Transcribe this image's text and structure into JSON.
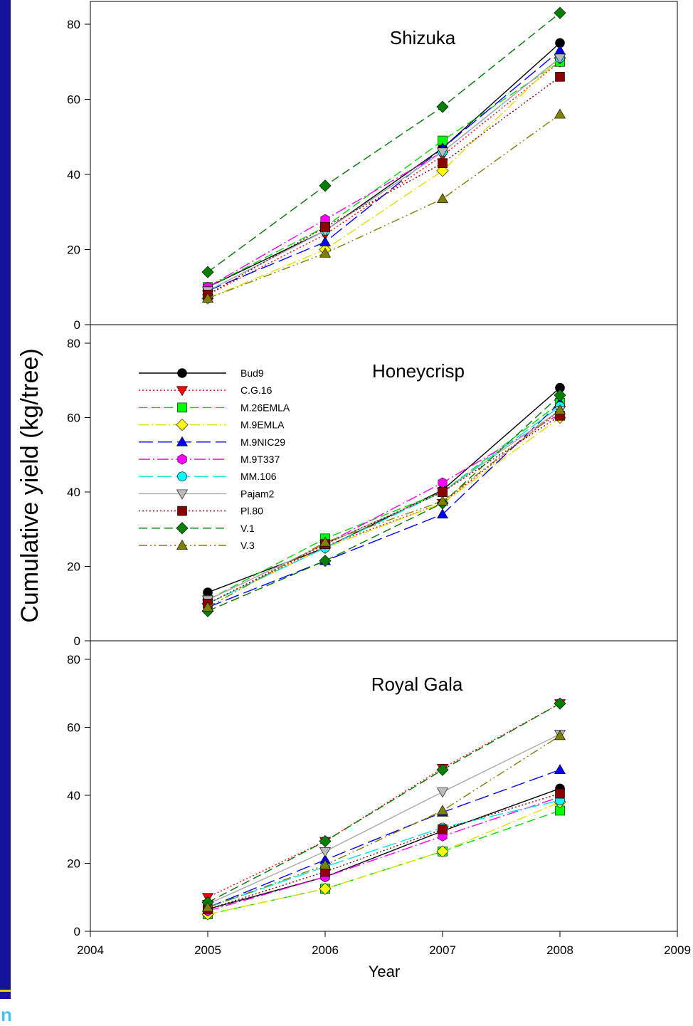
{
  "strip_glyph": "n",
  "xlabel": "Year",
  "ylabel": "Cumulative yield (kg/tree)",
  "x_ticks": [
    "2004",
    "2005",
    "2006",
    "2007",
    "2008",
    "2009"
  ],
  "y_ticks": [
    "0",
    "20",
    "40",
    "60",
    "80"
  ],
  "series_styles": [
    {
      "name": "Bud9",
      "color": "#000000",
      "marker": "circle",
      "markerColor": "#000000",
      "dash": ""
    },
    {
      "name": "C.G.16",
      "color": "#ff0000",
      "marker": "triangle-down",
      "markerColor": "#ff0000",
      "dash": "2,3"
    },
    {
      "name": "M.26EMLA",
      "color": "#00dd00",
      "marker": "square",
      "markerColor": "#00ff00",
      "dash": "12,6"
    },
    {
      "name": "M.9EMLA",
      "color": "#e0e000",
      "marker": "diamond",
      "markerColor": "#ffff00",
      "dash": "14,4,2,4"
    },
    {
      "name": "M.9NIC29",
      "color": "#0000ff",
      "marker": "triangle-up",
      "markerColor": "#0000ff",
      "dash": "20,7"
    },
    {
      "name": "M.9T337",
      "color": "#ff00ff",
      "marker": "hexagon",
      "markerColor": "#ff00ff",
      "dash": "16,4,2,4"
    },
    {
      "name": "MM.106",
      "color": "#00e5e5",
      "marker": "circle",
      "markerColor": "#00ffff",
      "dash": "20,6"
    },
    {
      "name": "Pajam2",
      "color": "#aaaaaa",
      "marker": "triangle-down",
      "markerColor": "#bbbbbb",
      "dash": ""
    },
    {
      "name": "Pl.80",
      "color": "#800000",
      "marker": "square",
      "markerColor": "#8b0000",
      "dash": "2,3"
    },
    {
      "name": "V.1",
      "color": "#007700",
      "marker": "diamond",
      "markerColor": "#008000",
      "dash": "12,6"
    },
    {
      "name": "V.3",
      "color": "#808000",
      "marker": "triangle-up",
      "markerColor": "#808000",
      "dash": "12,4,2,4,2,4"
    }
  ],
  "chart_data": [
    {
      "type": "line",
      "title": "Shizuka",
      "x": [
        2005,
        2006,
        2007,
        2008
      ],
      "xlim": [
        2004,
        2009
      ],
      "ylim": [
        0,
        85
      ],
      "series": [
        {
          "name": "Bud9",
          "values": [
            10,
            25,
            47,
            75
          ]
        },
        {
          "name": "C.G.16",
          "values": [
            8,
            24,
            45,
            70
          ]
        },
        {
          "name": "M.26EMLA",
          "values": [
            10,
            26,
            49,
            70
          ]
        },
        {
          "name": "M.9EMLA",
          "values": [
            7,
            20,
            41,
            71
          ]
        },
        {
          "name": "M.9NIC29",
          "values": [
            9,
            22,
            47,
            73
          ]
        },
        {
          "name": "M.9T337",
          "values": [
            10,
            28,
            46,
            71
          ]
        },
        {
          "name": "MM.106",
          "values": [
            9,
            25,
            46,
            71
          ]
        },
        {
          "name": "Pajam2",
          "values": [
            9,
            25,
            46,
            71
          ]
        },
        {
          "name": "Pl.80",
          "values": [
            8,
            26,
            43,
            66
          ]
        },
        {
          "name": "V.1",
          "values": [
            14,
            37,
            58,
            83
          ]
        },
        {
          "name": "V.3",
          "values": [
            7,
            19,
            33.5,
            56
          ]
        }
      ]
    },
    {
      "type": "line",
      "title": "Honeycrisp",
      "x": [
        2005,
        2006,
        2007,
        2008
      ],
      "xlim": [
        2004,
        2009
      ],
      "ylim": [
        0,
        80
      ],
      "legend": "left",
      "series": [
        {
          "name": "Bud9",
          "values": [
            13,
            25,
            40.5,
            68
          ]
        },
        {
          "name": "C.G.16",
          "values": [
            10,
            25.5,
            37,
            62
          ]
        },
        {
          "name": "M.26EMLA",
          "values": [
            11,
            27.5,
            40,
            64
          ]
        },
        {
          "name": "M.9EMLA",
          "values": [
            10,
            25,
            37,
            60
          ]
        },
        {
          "name": "M.9NIC29",
          "values": [
            9,
            21.5,
            34,
            64
          ]
        },
        {
          "name": "M.9T337",
          "values": [
            11,
            26,
            42.5,
            61
          ]
        },
        {
          "name": "MM.106",
          "values": [
            10,
            25,
            40,
            63
          ]
        },
        {
          "name": "Pajam2",
          "values": [
            11,
            26,
            40,
            62
          ]
        },
        {
          "name": "Pl.80",
          "values": [
            10,
            26,
            40,
            60.5
          ]
        },
        {
          "name": "V.1",
          "values": [
            8,
            21.5,
            37,
            66
          ]
        },
        {
          "name": "V.3",
          "values": [
            9,
            26.5,
            37.5,
            62
          ]
        }
      ]
    },
    {
      "type": "line",
      "title": "Royal Gala",
      "x": [
        2005,
        2006,
        2007,
        2008
      ],
      "xlim": [
        2004,
        2009
      ],
      "ylim": [
        0,
        80
      ],
      "series": [
        {
          "name": "Bud9",
          "values": [
            6.5,
            16,
            29.5,
            42
          ]
        },
        {
          "name": "C.G.16",
          "values": [
            10,
            26.5,
            48,
            67
          ]
        },
        {
          "name": "M.26EMLA",
          "values": [
            5,
            12.5,
            23.5,
            35.5
          ]
        },
        {
          "name": "M.9EMLA",
          "values": [
            5,
            12.5,
            23.5,
            38
          ]
        },
        {
          "name": "M.9NIC29",
          "values": [
            7,
            21,
            35,
            47.5
          ]
        },
        {
          "name": "M.9T337",
          "values": [
            6,
            16,
            28,
            39.5
          ]
        },
        {
          "name": "MM.106",
          "values": [
            7,
            19,
            30.5,
            38.5
          ]
        },
        {
          "name": "Pajam2",
          "values": [
            8,
            23.5,
            41,
            58
          ]
        },
        {
          "name": "Pl.80",
          "values": [
            6.5,
            17.5,
            30,
            40.5
          ]
        },
        {
          "name": "V.1",
          "values": [
            8.5,
            26.5,
            47.5,
            67
          ]
        },
        {
          "name": "V.3",
          "values": [
            7,
            19.5,
            35.5,
            57.5
          ]
        }
      ]
    }
  ]
}
